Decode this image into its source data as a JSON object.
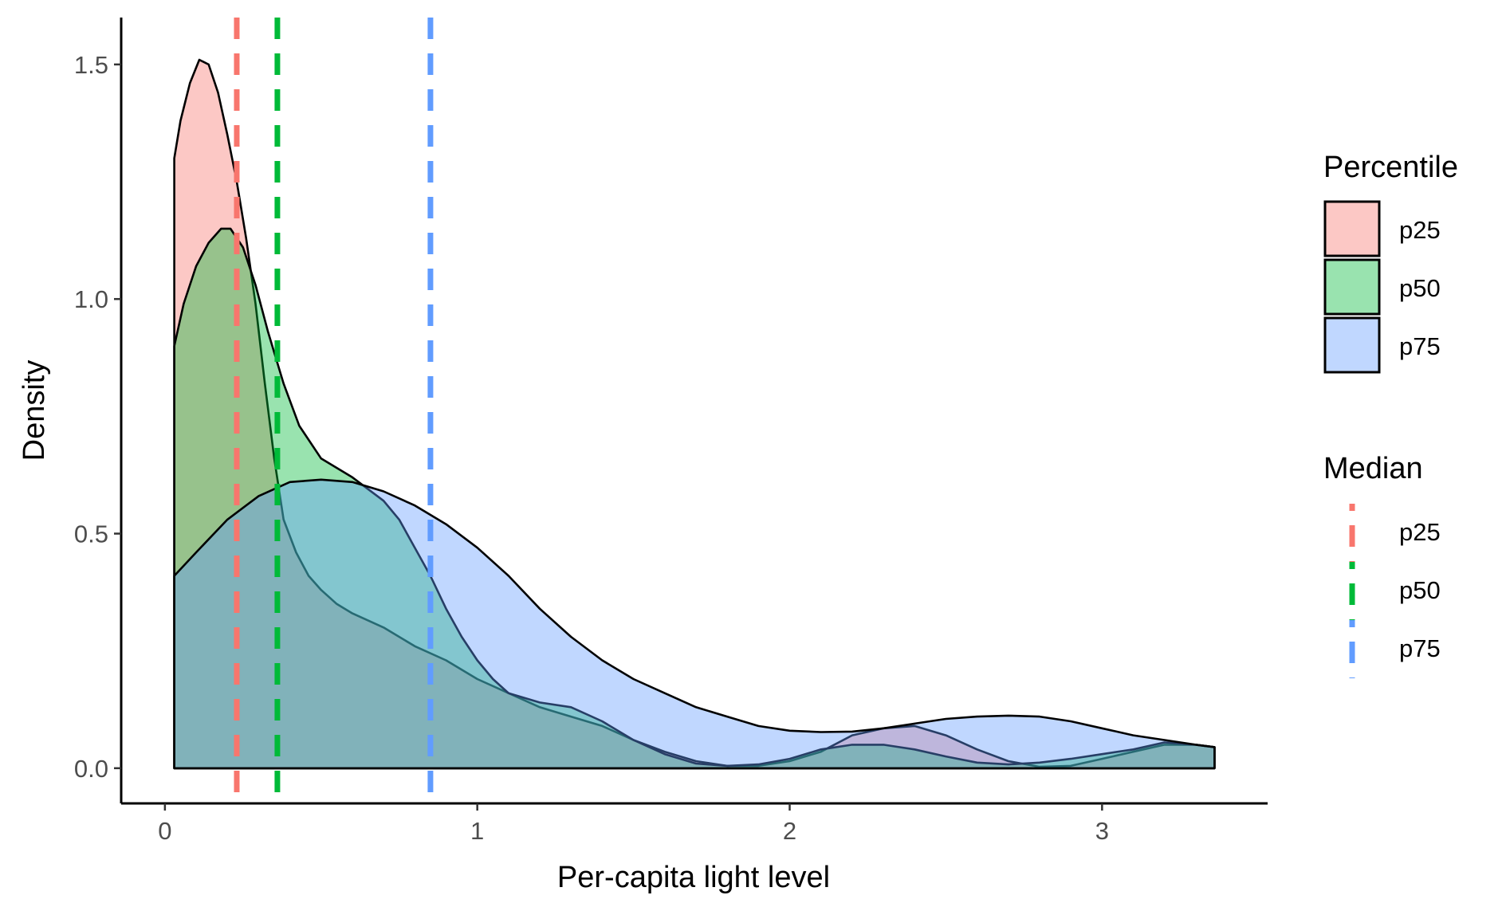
{
  "chart_data": {
    "type": "area",
    "xlabel": "Per-capita light level",
    "ylabel": "Density",
    "xlim": [
      -0.14,
      3.53
    ],
    "ylim": [
      -0.075,
      1.6
    ],
    "x_ticks": [
      {
        "value": 0,
        "label": "0"
      },
      {
        "value": 1,
        "label": "1"
      },
      {
        "value": 2,
        "label": "2"
      },
      {
        "value": 3,
        "label": "3"
      }
    ],
    "y_ticks": [
      {
        "value": 0,
        "label": "0.0"
      },
      {
        "value": 0.5,
        "label": "0.5"
      },
      {
        "value": 1,
        "label": "1.0"
      },
      {
        "value": 1.5,
        "label": "1.5"
      }
    ],
    "grid": false,
    "legend_position": "right",
    "series": [
      {
        "name": "p25",
        "fill": "#f8766d",
        "fill_opacity": 0.4,
        "median": 0.23,
        "points": [
          [
            0.03,
            1.3
          ],
          [
            0.05,
            1.38
          ],
          [
            0.08,
            1.46
          ],
          [
            0.11,
            1.51
          ],
          [
            0.14,
            1.5
          ],
          [
            0.17,
            1.44
          ],
          [
            0.2,
            1.35
          ],
          [
            0.23,
            1.25
          ],
          [
            0.26,
            1.13
          ],
          [
            0.29,
            0.99
          ],
          [
            0.32,
            0.82
          ],
          [
            0.35,
            0.66
          ],
          [
            0.38,
            0.53
          ],
          [
            0.42,
            0.46
          ],
          [
            0.46,
            0.41
          ],
          [
            0.5,
            0.38
          ],
          [
            0.55,
            0.35
          ],
          [
            0.6,
            0.33
          ],
          [
            0.7,
            0.3
          ],
          [
            0.8,
            0.26
          ],
          [
            0.9,
            0.23
          ],
          [
            1.0,
            0.19
          ],
          [
            1.1,
            0.16
          ],
          [
            1.2,
            0.13
          ],
          [
            1.3,
            0.11
          ],
          [
            1.4,
            0.09
          ],
          [
            1.5,
            0.06
          ],
          [
            1.6,
            0.035
          ],
          [
            1.7,
            0.015
          ],
          [
            1.8,
            0.005
          ],
          [
            1.9,
            0.005
          ],
          [
            2.0,
            0.015
          ],
          [
            2.1,
            0.035
          ],
          [
            2.2,
            0.07
          ],
          [
            2.3,
            0.085
          ],
          [
            2.4,
            0.09
          ],
          [
            2.5,
            0.07
          ],
          [
            2.6,
            0.04
          ],
          [
            2.7,
            0.015
          ],
          [
            2.8,
            0.003
          ],
          [
            2.9,
            0.005
          ],
          [
            3.0,
            0.02
          ],
          [
            3.1,
            0.035
          ],
          [
            3.2,
            0.05
          ],
          [
            3.3,
            0.05
          ],
          [
            3.36,
            0.045
          ]
        ]
      },
      {
        "name": "p50",
        "fill": "#00ba38",
        "fill_opacity": 0.4,
        "median": 0.36,
        "points": [
          [
            0.03,
            0.9
          ],
          [
            0.06,
            0.99
          ],
          [
            0.1,
            1.07
          ],
          [
            0.14,
            1.12
          ],
          [
            0.18,
            1.15
          ],
          [
            0.21,
            1.15
          ],
          [
            0.25,
            1.11
          ],
          [
            0.29,
            1.03
          ],
          [
            0.33,
            0.93
          ],
          [
            0.38,
            0.82
          ],
          [
            0.43,
            0.73
          ],
          [
            0.5,
            0.66
          ],
          [
            0.6,
            0.62
          ],
          [
            0.7,
            0.57
          ],
          [
            0.75,
            0.53
          ],
          [
            0.8,
            0.47
          ],
          [
            0.85,
            0.41
          ],
          [
            0.9,
            0.34
          ],
          [
            0.95,
            0.28
          ],
          [
            1.0,
            0.23
          ],
          [
            1.05,
            0.19
          ],
          [
            1.1,
            0.16
          ],
          [
            1.2,
            0.14
          ],
          [
            1.3,
            0.13
          ],
          [
            1.4,
            0.1
          ],
          [
            1.5,
            0.06
          ],
          [
            1.6,
            0.03
          ],
          [
            1.7,
            0.01
          ],
          [
            1.8,
            0.005
          ],
          [
            1.9,
            0.008
          ],
          [
            2.0,
            0.02
          ],
          [
            2.1,
            0.04
          ],
          [
            2.2,
            0.05
          ],
          [
            2.3,
            0.05
          ],
          [
            2.4,
            0.04
          ],
          [
            2.5,
            0.025
          ],
          [
            2.6,
            0.012
          ],
          [
            2.7,
            0.008
          ],
          [
            2.8,
            0.012
          ],
          [
            2.9,
            0.02
          ],
          [
            3.0,
            0.03
          ],
          [
            3.1,
            0.04
          ],
          [
            3.2,
            0.055
          ],
          [
            3.3,
            0.05
          ],
          [
            3.36,
            0.045
          ]
        ]
      },
      {
        "name": "p75",
        "fill": "#619cff",
        "fill_opacity": 0.4,
        "median": 0.85,
        "points": [
          [
            0.03,
            0.41
          ],
          [
            0.1,
            0.46
          ],
          [
            0.2,
            0.53
          ],
          [
            0.3,
            0.58
          ],
          [
            0.4,
            0.61
          ],
          [
            0.5,
            0.615
          ],
          [
            0.6,
            0.61
          ],
          [
            0.7,
            0.59
          ],
          [
            0.8,
            0.56
          ],
          [
            0.9,
            0.52
          ],
          [
            1.0,
            0.47
          ],
          [
            1.1,
            0.41
          ],
          [
            1.2,
            0.34
          ],
          [
            1.3,
            0.28
          ],
          [
            1.4,
            0.23
          ],
          [
            1.5,
            0.19
          ],
          [
            1.6,
            0.16
          ],
          [
            1.7,
            0.13
          ],
          [
            1.8,
            0.11
          ],
          [
            1.9,
            0.09
          ],
          [
            2.0,
            0.08
          ],
          [
            2.1,
            0.077
          ],
          [
            2.2,
            0.078
          ],
          [
            2.3,
            0.085
          ],
          [
            2.4,
            0.095
          ],
          [
            2.5,
            0.105
          ],
          [
            2.6,
            0.11
          ],
          [
            2.7,
            0.112
          ],
          [
            2.8,
            0.11
          ],
          [
            2.9,
            0.1
          ],
          [
            3.0,
            0.085
          ],
          [
            3.1,
            0.07
          ],
          [
            3.2,
            0.06
          ],
          [
            3.3,
            0.05
          ],
          [
            3.36,
            0.045
          ]
        ]
      }
    ],
    "legend_percentile": {
      "title": "Percentile",
      "entries": [
        "p25",
        "p50",
        "p75"
      ]
    },
    "legend_median": {
      "title": "Median",
      "entries": [
        "p25",
        "p50",
        "p75"
      ]
    }
  }
}
